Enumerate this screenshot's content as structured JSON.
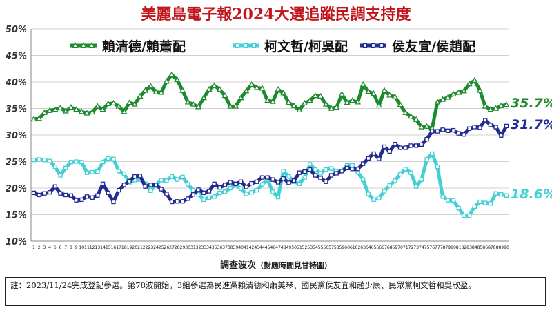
{
  "chart_data": {
    "type": "line",
    "title": "美麗島電子報2024大選追蹤民調支持度",
    "xlabel": "調查波次",
    "xlabel_sub": "（對應時間見甘特圖）",
    "ylim": [
      10,
      50
    ],
    "yticks": [
      "10%",
      "15%",
      "20%",
      "25%",
      "30%",
      "35%",
      "40%",
      "45%",
      "50%"
    ],
    "grid": "horizontal",
    "x": [
      1,
      2,
      3,
      4,
      5,
      6,
      7,
      8,
      9,
      10,
      11,
      12,
      13,
      14,
      15,
      16,
      17,
      18,
      19,
      20,
      21,
      22,
      23,
      24,
      25,
      26,
      27,
      28,
      29,
      30,
      31,
      32,
      33,
      34,
      35,
      36,
      37,
      38,
      39,
      40,
      41,
      42,
      43,
      44,
      45,
      46,
      47,
      48,
      49,
      50,
      51,
      52,
      53,
      54,
      55,
      56,
      57,
      58,
      59,
      60,
      61,
      62,
      63,
      64,
      65,
      66,
      67,
      68,
      69,
      70,
      71,
      72,
      73,
      74,
      75,
      76,
      77,
      78,
      79,
      80,
      81,
      82,
      83,
      84,
      85,
      86,
      87,
      88,
      89,
      90
    ],
    "series": [
      {
        "name": "賴清德/賴蕭配",
        "color": "#1e8a2e",
        "marker": "triangle",
        "end_label": "35.7%",
        "values": [
          33.0,
          33.1,
          34.2,
          34.6,
          34.8,
          35.1,
          34.5,
          35.2,
          34.8,
          34.4,
          34.1,
          34.3,
          35.4,
          34.8,
          35.9,
          36.0,
          35.4,
          34.4,
          36.1,
          35.8,
          37.3,
          38.4,
          39.2,
          38.1,
          38.0,
          40.1,
          41.4,
          40.4,
          38.4,
          36.2,
          35.8,
          35.3,
          37.0,
          38.6,
          39.3,
          38.6,
          37.4,
          35.4,
          35.4,
          37.0,
          38.3,
          39.5,
          38.9,
          38.8,
          36.5,
          36.3,
          38.6,
          37.9,
          36.1,
          35.5,
          34.7,
          36.0,
          36.5,
          37.4,
          37.3,
          35.8,
          35.0,
          35.2,
          37.7,
          36.1,
          36.5,
          36.2,
          39.5,
          38.2,
          37.8,
          35.6,
          38.4,
          37.5,
          37.2,
          35.7,
          34.2,
          33.5,
          32.9,
          31.5,
          31.6,
          31.2,
          36.2,
          36.7,
          37.1,
          37.7,
          38.0,
          38.3,
          39.6,
          40.3,
          38.4,
          35.4,
          34.8,
          35.0,
          35.5,
          35.7
        ]
      },
      {
        "name": "柯文哲/柯吳配",
        "color": "#42cfd6",
        "marker": "square",
        "end_label": "18.6%",
        "values": [
          25.3,
          25.4,
          25.3,
          25.1,
          24.0,
          22.4,
          23.8,
          24.9,
          25.0,
          24.9,
          22.9,
          23.0,
          23.1,
          24.9,
          25.6,
          25.5,
          23.2,
          22.7,
          21.1,
          21.5,
          21.6,
          20.8,
          19.5,
          20.6,
          21.5,
          21.4,
          22.2,
          21.6,
          22.1,
          20.7,
          19.6,
          18.8,
          17.8,
          18.2,
          18.4,
          19.1,
          19.3,
          20.0,
          20.6,
          19.9,
          18.9,
          19.2,
          19.6,
          20.7,
          21.6,
          19.3,
          18.3,
          23.2,
          22.2,
          21.2,
          20.8,
          22.0,
          24.5,
          23.5,
          22.8,
          23.5,
          23.7,
          23.2,
          23.2,
          24.3,
          24.3,
          23.0,
          21.6,
          18.9,
          17.8,
          18.1,
          19.4,
          20.5,
          21.4,
          22.6,
          23.6,
          22.9,
          20.3,
          21.6,
          25.4,
          26.5,
          24.0,
          18.4,
          17.7,
          17.7,
          16.2,
          14.8,
          14.8,
          16.5,
          17.4,
          17.2,
          17.1,
          19.0,
          18.8,
          18.6
        ]
      },
      {
        "name": "侯友宜/侯趙配",
        "color": "#222b8f",
        "marker": "square",
        "end_label": "31.7%",
        "values": [
          19.1,
          18.7,
          19.0,
          19.2,
          20.3,
          19.0,
          18.7,
          18.6,
          17.7,
          17.8,
          18.4,
          18.2,
          18.6,
          20.8,
          19.1,
          17.4,
          19.6,
          20.6,
          21.3,
          22.2,
          22.3,
          20.3,
          20.6,
          20.6,
          19.8,
          18.9,
          17.4,
          17.5,
          17.5,
          18.0,
          18.8,
          19.7,
          19.1,
          19.4,
          20.8,
          20.1,
          20.6,
          21.1,
          20.8,
          21.2,
          20.2,
          20.9,
          21.2,
          22.0,
          22.0,
          21.6,
          21.1,
          21.8,
          21.0,
          21.4,
          22.9,
          23.1,
          23.5,
          22.4,
          21.9,
          21.2,
          22.4,
          22.8,
          23.2,
          23.8,
          23.6,
          23.6,
          24.6,
          25.6,
          26.5,
          25.5,
          27.8,
          26.9,
          28.3,
          27.6,
          27.6,
          28.0,
          28.0,
          28.2,
          29.2,
          30.7,
          30.7,
          31.0,
          30.8,
          30.9,
          30.3,
          30.1,
          31.2,
          31.5,
          31.4,
          32.8,
          31.9,
          31.5,
          29.9,
          31.7
        ]
      }
    ],
    "legend_position": "top"
  },
  "note": "註：2023/11/24完成登記參選。第78波開始，3組參選為民進黨賴清德和蕭美琴、國民黨侯友宜和趙少康、民眾黨柯文哲和吳欣盈。"
}
